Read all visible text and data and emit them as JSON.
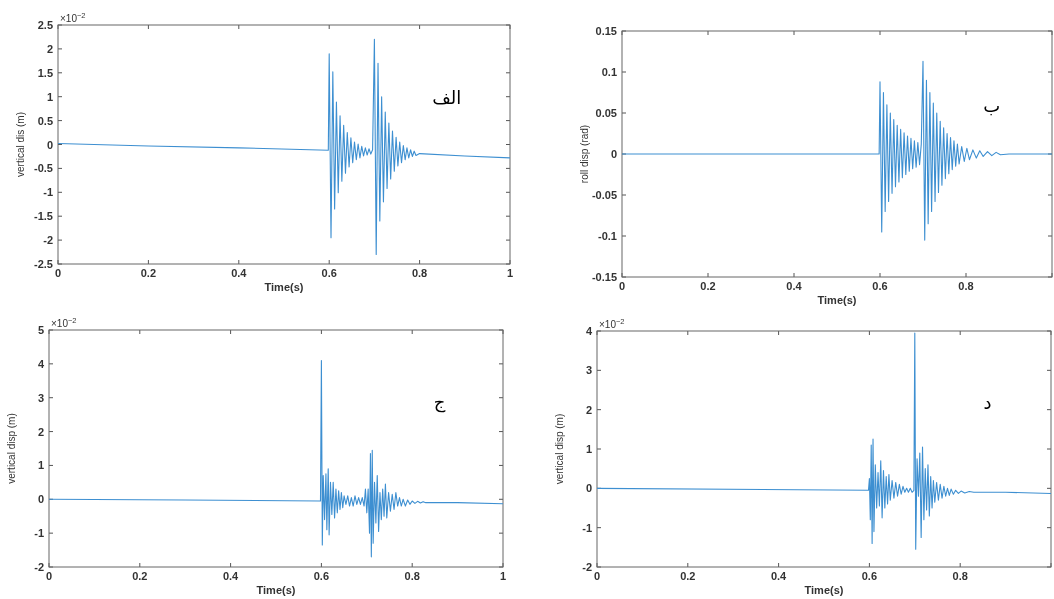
{
  "chart_data": [
    {
      "type": "line",
      "xlabel": "Time(s)",
      "ylabel": "vertical dis (m)",
      "annotations": [
        "×10$^{−2}$",
        "الف"
      ],
      "xlim": [
        0,
        1
      ],
      "xticks": [
        0,
        0.2,
        0.4,
        0.6,
        0.8,
        1
      ],
      "ylim": [
        -2.5,
        2.5
      ],
      "yticks": [
        -2.5,
        -2,
        -1.5,
        -1,
        -0.5,
        0,
        0.5,
        1,
        1.5,
        2,
        2.5
      ],
      "grid": false,
      "series": [
        {
          "color": "#3d8fd1",
          "x": [
            0,
            0.2,
            0.4,
            0.598,
            0.6,
            0.604,
            0.608,
            0.612,
            0.616,
            0.62,
            0.624,
            0.628,
            0.632,
            0.636,
            0.64,
            0.644,
            0.648,
            0.652,
            0.656,
            0.66,
            0.664,
            0.668,
            0.672,
            0.676,
            0.68,
            0.684,
            0.688,
            0.692,
            0.696,
            0.7,
            0.704,
            0.708,
            0.712,
            0.716,
            0.72,
            0.724,
            0.728,
            0.732,
            0.736,
            0.74,
            0.744,
            0.748,
            0.752,
            0.756,
            0.76,
            0.764,
            0.768,
            0.772,
            0.776,
            0.78,
            0.784,
            0.788,
            0.792,
            0.8,
            0.9,
            1.0
          ],
          "values": [
            0.02,
            -0.03,
            -0.07,
            -0.12,
            1.9,
            -1.95,
            1.52,
            -1.35,
            0.89,
            -1.01,
            0.6,
            -0.77,
            0.4,
            -0.6,
            0.25,
            -0.47,
            0.14,
            -0.38,
            0.05,
            -0.32,
            0.01,
            -0.28,
            -0.04,
            -0.24,
            -0.07,
            -0.22,
            -0.09,
            -0.2,
            -0.11,
            2.2,
            -2.3,
            1.7,
            -1.6,
            1.0,
            -1.2,
            0.68,
            -0.92,
            0.45,
            -0.72,
            0.28,
            -0.56,
            0.15,
            -0.45,
            0.05,
            -0.38,
            -0.02,
            -0.32,
            -0.07,
            -0.28,
            -0.11,
            -0.25,
            -0.14,
            -0.23,
            -0.19,
            -0.24,
            -0.28
          ]
        }
      ]
    },
    {
      "type": "line",
      "xlabel": "Time(s)",
      "ylabel": "roll disp (rad)",
      "annotations": [
        "ب"
      ],
      "xlim": [
        0,
        1
      ],
      "xticks": [
        0,
        0.2,
        0.4,
        0.6,
        0.8,
        {
          "value": 1,
          "label": null
        }
      ],
      "ylim": [
        -0.15,
        0.15
      ],
      "yticks": [
        -0.15,
        -0.1,
        -0.05,
        0,
        0.05,
        0.1,
        0.15
      ],
      "grid": false,
      "series": [
        {
          "color": "#3d8fd1",
          "x": [
            0,
            0.598,
            0.6,
            0.604,
            0.608,
            0.612,
            0.616,
            0.62,
            0.624,
            0.628,
            0.632,
            0.636,
            0.64,
            0.644,
            0.648,
            0.652,
            0.656,
            0.66,
            0.664,
            0.668,
            0.672,
            0.676,
            0.68,
            0.684,
            0.688,
            0.692,
            0.696,
            0.7,
            0.704,
            0.708,
            0.712,
            0.716,
            0.72,
            0.724,
            0.728,
            0.732,
            0.736,
            0.74,
            0.744,
            0.748,
            0.752,
            0.756,
            0.76,
            0.764,
            0.768,
            0.772,
            0.776,
            0.78,
            0.784,
            0.79,
            0.796,
            0.802,
            0.808,
            0.816,
            0.824,
            0.832,
            0.84,
            0.85,
            0.86,
            0.87,
            0.88,
            0.9,
            1.0
          ],
          "values": [
            0,
            0,
            0.088,
            -0.095,
            0.075,
            -0.07,
            0.06,
            -0.058,
            0.05,
            -0.048,
            0.042,
            -0.04,
            0.035,
            -0.034,
            0.03,
            -0.029,
            0.026,
            -0.025,
            0.022,
            -0.021,
            0.019,
            -0.018,
            0.016,
            -0.016,
            0.014,
            -0.013,
            0.012,
            0.113,
            -0.105,
            0.09,
            -0.085,
            0.075,
            -0.07,
            0.062,
            -0.058,
            0.05,
            -0.047,
            0.04,
            -0.038,
            0.032,
            -0.03,
            0.025,
            -0.024,
            0.02,
            -0.019,
            0.016,
            -0.015,
            0.012,
            -0.012,
            0.009,
            -0.009,
            0.007,
            -0.007,
            0.005,
            -0.005,
            0.004,
            -0.003,
            0.003,
            -0.002,
            0.002,
            -0.001,
            0,
            0
          ]
        }
      ]
    },
    {
      "type": "line",
      "xlabel": "Time(s)",
      "ylabel": "vertical disp (m)",
      "annotations": [
        "×10$^{−2}$",
        "ج"
      ],
      "xlim": [
        0,
        1
      ],
      "xticks": [
        0,
        0.2,
        0.4,
        0.6,
        0.8,
        1
      ],
      "ylim": [
        -2,
        5
      ],
      "yticks": [
        -2,
        -1,
        0,
        1,
        2,
        3,
        4,
        5
      ],
      "grid": false,
      "series": [
        {
          "color": "#3d8fd1",
          "x": [
            0,
            0.3,
            0.598,
            0.6,
            0.602,
            0.604,
            0.607,
            0.61,
            0.612,
            0.615,
            0.617,
            0.62,
            0.623,
            0.626,
            0.629,
            0.632,
            0.635,
            0.638,
            0.641,
            0.644,
            0.647,
            0.65,
            0.654,
            0.658,
            0.662,
            0.666,
            0.67,
            0.674,
            0.678,
            0.682,
            0.686,
            0.69,
            0.694,
            0.697,
            0.7,
            0.703,
            0.706,
            0.708,
            0.71,
            0.712,
            0.714,
            0.717,
            0.72,
            0.723,
            0.726,
            0.729,
            0.732,
            0.735,
            0.738,
            0.741,
            0.744,
            0.748,
            0.752,
            0.756,
            0.76,
            0.764,
            0.768,
            0.772,
            0.776,
            0.78,
            0.785,
            0.79,
            0.795,
            0.8,
            0.806,
            0.812,
            0.818,
            0.824,
            0.83,
            0.9,
            1.0
          ],
          "values": [
            0,
            -0.02,
            -0.05,
            4.1,
            -1.35,
            0.7,
            -0.6,
            0.75,
            -0.9,
            0.9,
            -1.05,
            0.5,
            -0.45,
            0.5,
            -0.55,
            0.3,
            -0.4,
            0.25,
            -0.3,
            0.2,
            -0.25,
            0.1,
            -0.15,
            0.1,
            -0.2,
            0.05,
            -0.2,
            0.1,
            -0.15,
            0.05,
            -0.15,
            0.05,
            -0.2,
            0.3,
            -0.4,
            0.3,
            -1.0,
            1.35,
            -1.7,
            1.45,
            -1.3,
            0.5,
            -0.7,
            0.7,
            -0.95,
            0.2,
            -0.6,
            0.3,
            -0.5,
            0.45,
            -0.55,
            0.2,
            -0.35,
            0.15,
            -0.3,
            0.2,
            -0.2,
            0.05,
            -0.2,
            0,
            -0.2,
            -0.02,
            -0.15,
            -0.05,
            -0.12,
            -0.06,
            -0.11,
            -0.07,
            -0.1,
            -0.1,
            -0.13
          ]
        }
      ]
    },
    {
      "type": "line",
      "xlabel": "Time(s)",
      "ylabel": "vertical disp (m)",
      "annotations": [
        "×10$^{−2}$",
        "د"
      ],
      "xlim": [
        0,
        1
      ],
      "xticks": [
        0,
        0.2,
        0.4,
        0.6,
        0.8,
        {
          "value": 1,
          "label": null
        }
      ],
      "ylim": [
        -2,
        4
      ],
      "yticks": [
        -2,
        -1,
        0,
        1,
        2,
        3,
        4
      ],
      "grid": false,
      "series": [
        {
          "color": "#3d8fd1",
          "x": [
            0,
            0.598,
            0.6,
            0.602,
            0.604,
            0.606,
            0.608,
            0.61,
            0.613,
            0.616,
            0.619,
            0.622,
            0.625,
            0.628,
            0.631,
            0.634,
            0.637,
            0.64,
            0.643,
            0.646,
            0.65,
            0.654,
            0.658,
            0.662,
            0.666,
            0.67,
            0.674,
            0.678,
            0.682,
            0.686,
            0.69,
            0.694,
            0.698,
            0.7,
            0.702,
            0.705,
            0.708,
            0.711,
            0.714,
            0.717,
            0.72,
            0.723,
            0.726,
            0.729,
            0.732,
            0.735,
            0.738,
            0.741,
            0.744,
            0.748,
            0.752,
            0.756,
            0.76,
            0.764,
            0.768,
            0.772,
            0.776,
            0.78,
            0.785,
            0.79,
            0.796,
            0.802,
            0.81,
            0.82,
            0.83,
            0.9,
            1.0
          ],
          "values": [
            0,
            -0.05,
            0.25,
            -0.8,
            1.1,
            -1.4,
            1.25,
            -1.1,
            0.6,
            -0.5,
            0.4,
            -0.45,
            0.7,
            -0.75,
            0.45,
            -0.5,
            0.3,
            -0.4,
            0.35,
            -0.3,
            0.2,
            -0.25,
            0.15,
            -0.2,
            0.1,
            -0.15,
            0.05,
            -0.1,
            0,
            -0.1,
            0,
            -0.1,
            -0.05,
            3.95,
            -1.55,
            0.75,
            -0.2,
            0.9,
            -1.25,
            1.05,
            -0.8,
            0.5,
            -0.55,
            0.6,
            -0.7,
            0.3,
            -0.5,
            0.2,
            -0.35,
            0.15,
            -0.3,
            0.1,
            -0.25,
            0.05,
            -0.2,
            0,
            -0.18,
            -0.02,
            -0.15,
            -0.05,
            -0.13,
            -0.07,
            -0.12,
            -0.08,
            -0.1,
            -0.1,
            -0.13
          ]
        }
      ]
    }
  ]
}
